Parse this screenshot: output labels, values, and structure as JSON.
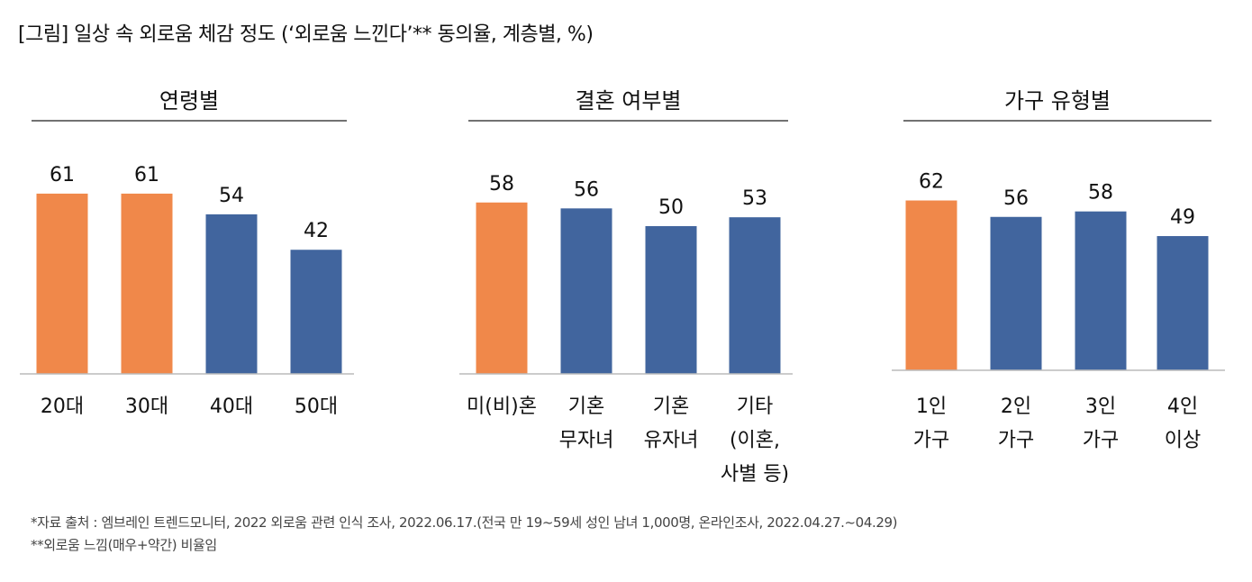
{
  "title": "[그림] 일상 속 외로움 체감 정도 (‘외로움 느낀다’** 동의율, 계층별, %)",
  "colors": {
    "highlight": "#F0884A",
    "base": "#41659E"
  },
  "chart_data": [
    {
      "type": "bar",
      "title": "연령별",
      "categories": [
        [
          "20대"
        ],
        [
          "30대"
        ],
        [
          "40대"
        ],
        [
          "50대"
        ]
      ],
      "values": [
        61,
        61,
        54,
        42
      ],
      "highlighted": [
        true,
        true,
        false,
        false
      ],
      "ylim": [
        0,
        80
      ],
      "grid": false
    },
    {
      "type": "bar",
      "title": "결혼 여부별",
      "categories": [
        [
          "미(비)혼"
        ],
        [
          "기혼",
          "무자녀"
        ],
        [
          "기혼",
          "유자녀"
        ],
        [
          "기타",
          "(이혼,",
          "사별 등)"
        ]
      ],
      "values": [
        58,
        56,
        50,
        53
      ],
      "highlighted": [
        true,
        false,
        false,
        false
      ],
      "ylim": [
        0,
        80
      ],
      "grid": false
    },
    {
      "type": "bar",
      "title": "가구 유형별",
      "categories": [
        [
          "1인",
          "가구"
        ],
        [
          "2인",
          "가구"
        ],
        [
          "3인",
          "가구"
        ],
        [
          "4인",
          "이상"
        ]
      ],
      "values": [
        62,
        56,
        58,
        49
      ],
      "highlighted": [
        true,
        false,
        false,
        false
      ],
      "ylim": [
        0,
        80
      ],
      "grid": false
    }
  ],
  "footnotes": [
    "*자료 출처 : 엠브레인 트렌드모니터, 2022 외로움 관련 인식 조사, 2022.06.17.(전국 만 19~59세  성인 남녀 1,000명, 온라인조사, 2022.04.27.~04.29)",
    "**외로움 느낌(매우+약간) 비율임"
  ]
}
